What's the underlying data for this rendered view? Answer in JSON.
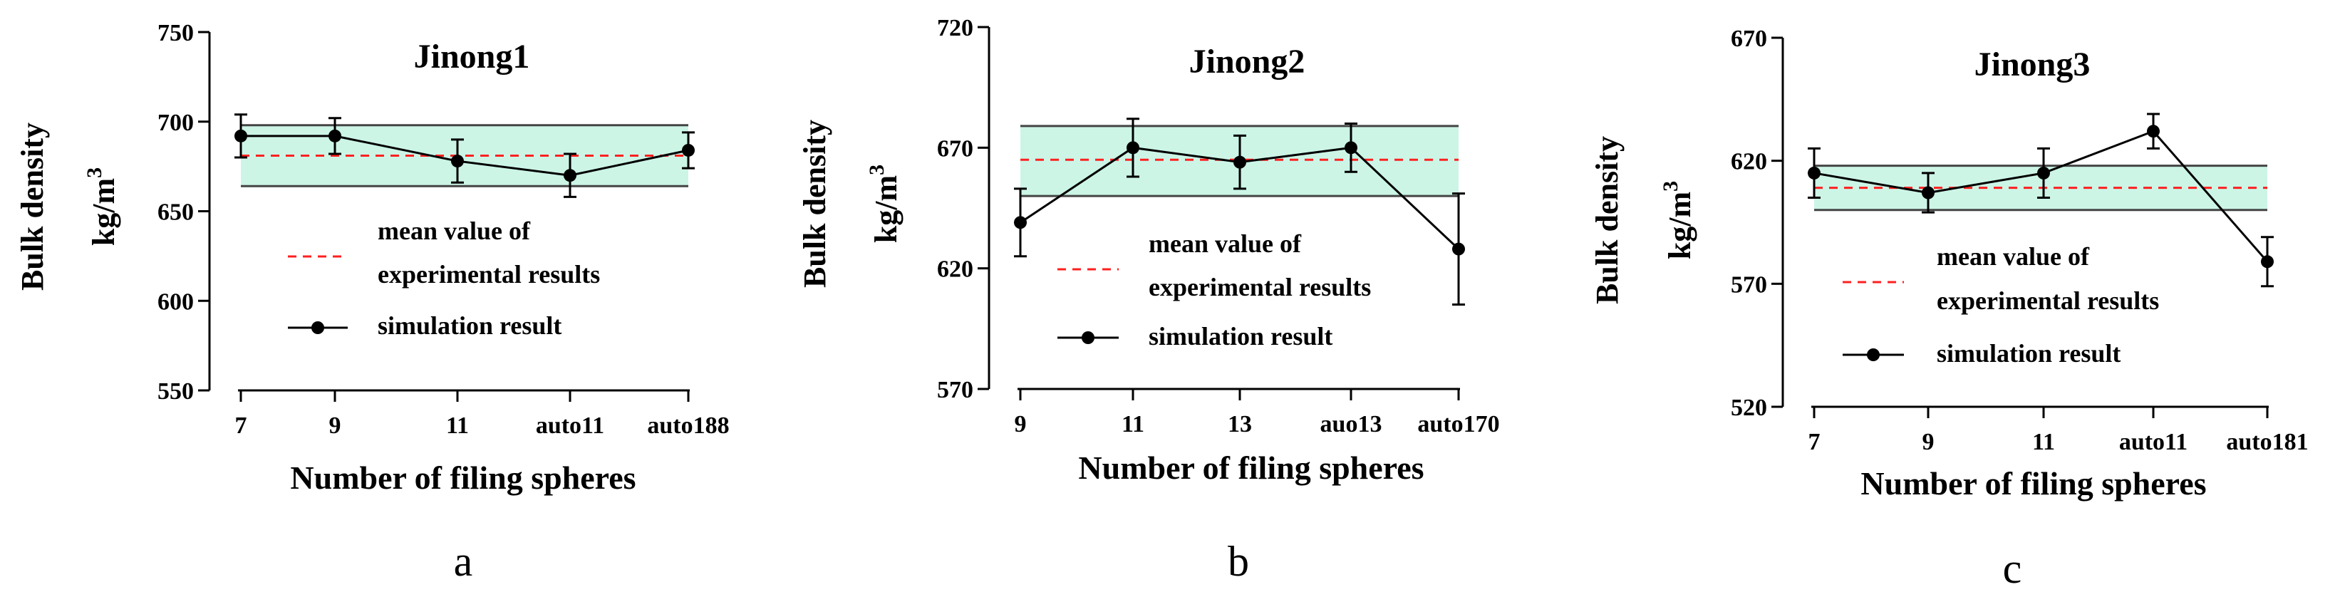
{
  "band_color": "#ccf5e6",
  "mean_color": "#ff2020",
  "chart_data": [
    {
      "type": "line",
      "panel": "a",
      "title": "Jinong1",
      "ylabel": "Bulk density",
      "yunit": "kg/m",
      "yunit_exp": "3",
      "xlabel": "Number of filing spheres",
      "categories": [
        "7",
        "9",
        "11",
        "auto11",
        "auto188"
      ],
      "values": [
        692,
        692,
        678,
        670,
        684
      ],
      "errors": [
        12,
        10,
        12,
        12,
        10
      ],
      "ylim": [
        550,
        750
      ],
      "yticks": [
        "550",
        "600",
        "650",
        "700",
        "750"
      ],
      "band": [
        664,
        698
      ],
      "mean": 681,
      "legend": {
        "mean_label_line1": "mean value of",
        "mean_label_line2": "experimental results",
        "sim_label": "simulation result"
      }
    },
    {
      "type": "line",
      "panel": "b",
      "title": "Jinong2",
      "ylabel": "Bulk density",
      "yunit": "kg/m",
      "yunit_exp": "3",
      "xlabel": "Number of filing spheres",
      "categories": [
        "9",
        "11",
        "13",
        "auo13",
        "auto170"
      ],
      "values": [
        639,
        670,
        664,
        670,
        628
      ],
      "errors": [
        14,
        12,
        11,
        10,
        23
      ],
      "ylim": [
        570,
        720
      ],
      "yticks": [
        "570",
        "620",
        "670",
        "720"
      ],
      "band": [
        650,
        679
      ],
      "mean": 665,
      "legend": {
        "mean_label_line1": "mean value of",
        "mean_label_line2": "experimental results",
        "sim_label": "simulation result"
      }
    },
    {
      "type": "line",
      "panel": "c",
      "title": "Jinong3",
      "ylabel": "Bulk density",
      "yunit": "kg/m",
      "yunit_exp": "3",
      "xlabel": "Number of filing spheres",
      "categories": [
        "7",
        "9",
        "11",
        "auto11",
        "auto181"
      ],
      "values": [
        615,
        607,
        615,
        632,
        579
      ],
      "errors": [
        10,
        8,
        10,
        7,
        10
      ],
      "ylim": [
        520,
        670
      ],
      "yticks": [
        "520",
        "570",
        "620",
        "670"
      ],
      "band": [
        600,
        618
      ],
      "mean": 609,
      "legend": {
        "mean_label_line1": "mean value of",
        "mean_label_line2": "experimental results",
        "sim_label": "simulation result"
      }
    }
  ]
}
